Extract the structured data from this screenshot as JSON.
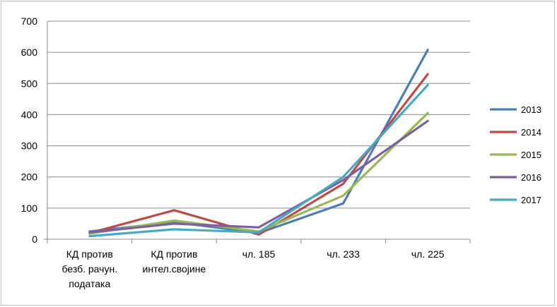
{
  "chart_data": {
    "type": "line",
    "title": "",
    "xlabel": "",
    "ylabel": "",
    "ylim": [
      0,
      700
    ],
    "yticks": [
      0,
      100,
      200,
      300,
      400,
      500,
      600,
      700
    ],
    "grid": "horizontal",
    "legend_position": "right",
    "categories": [
      [
        "КД против",
        "безб. рачун.",
        "података"
      ],
      [
        "КД против",
        "интел.својине"
      ],
      [
        "чл. 185"
      ],
      [
        "чл. 233"
      ],
      [
        "чл. 225"
      ]
    ],
    "series": [
      {
        "name": "2013",
        "color": "#4a7ebb",
        "values": [
          25,
          55,
          20,
          115,
          608
        ]
      },
      {
        "name": "2014",
        "color": "#be4b48",
        "values": [
          20,
          93,
          15,
          178,
          530
        ]
      },
      {
        "name": "2015",
        "color": "#98b954",
        "values": [
          18,
          60,
          25,
          140,
          405
        ]
      },
      {
        "name": "2016",
        "color": "#7d60a0",
        "values": [
          22,
          50,
          38,
          190,
          380
        ]
      },
      {
        "name": "2017",
        "color": "#46aac5",
        "values": [
          10,
          32,
          22,
          200,
          495
        ]
      }
    ]
  }
}
